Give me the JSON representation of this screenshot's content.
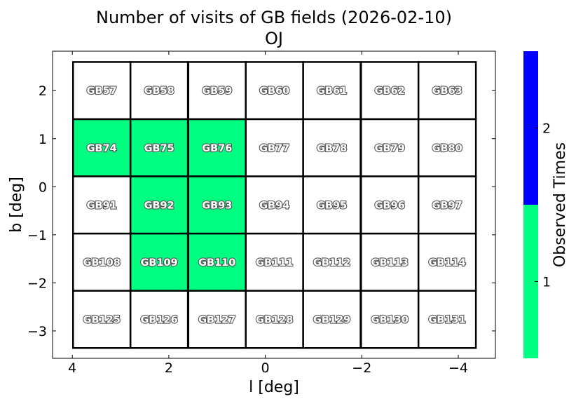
{
  "chart_data": {
    "type": "heatmap",
    "title": "Number of visits of GB fields (2026-02-10)",
    "subtitle": "OJ",
    "xlabel": "l [deg]",
    "ylabel": "b [deg]",
    "xlim": [
      4.41,
      -4.77
    ],
    "ylim": [
      -3.57,
      2.82
    ],
    "xticks": [
      4,
      2,
      0,
      -2,
      -4
    ],
    "xtick_labels": [
      "4",
      "2",
      "0",
      "−2",
      "−4"
    ],
    "yticks": [
      2,
      1,
      0,
      -1,
      -2,
      -3
    ],
    "ytick_labels": [
      "2",
      "1",
      "0",
      "−1",
      "−2",
      "−3"
    ],
    "grid": false,
    "cell_size_deg": 1.19,
    "columns_l": [
      3.39,
      2.2,
      1.0,
      -0.19,
      -1.38,
      -2.58,
      -3.77
    ],
    "rows_b": [
      2.0,
      0.81,
      -0.38,
      -1.57,
      -2.76
    ],
    "fields": [
      [
        "GB57",
        "GB58",
        "GB59",
        "GB60",
        "GB61",
        "GB62",
        "GB63"
      ],
      [
        "GB74",
        "GB75",
        "GB76",
        "GB77",
        "GB78",
        "GB79",
        "GB80"
      ],
      [
        "GB91",
        "GB92",
        "GB93",
        "GB94",
        "GB95",
        "GB96",
        "GB97"
      ],
      [
        "GB108",
        "GB109",
        "GB110",
        "GB111",
        "GB112",
        "GB113",
        "GB114"
      ],
      [
        "GB125",
        "GB126",
        "GB127",
        "GB128",
        "GB129",
        "GB130",
        "GB131"
      ]
    ],
    "visits": [
      [
        0,
        0,
        0,
        0,
        0,
        0,
        0
      ],
      [
        1,
        1,
        1,
        0,
        0,
        0,
        0
      ],
      [
        0,
        1,
        1,
        0,
        0,
        0,
        0
      ],
      [
        0,
        1,
        1,
        0,
        0,
        0,
        0
      ],
      [
        0,
        0,
        0,
        0,
        0,
        0,
        0
      ]
    ],
    "colorbar": {
      "label": "Observed Times",
      "range": [
        0.5,
        2.5
      ],
      "ticks": [
        1,
        2
      ],
      "tick_labels": [
        "1",
        "2"
      ],
      "colors": {
        "1": "#00ff80",
        "2": "#0000ff"
      },
      "zero_color": "#ffffff"
    }
  }
}
